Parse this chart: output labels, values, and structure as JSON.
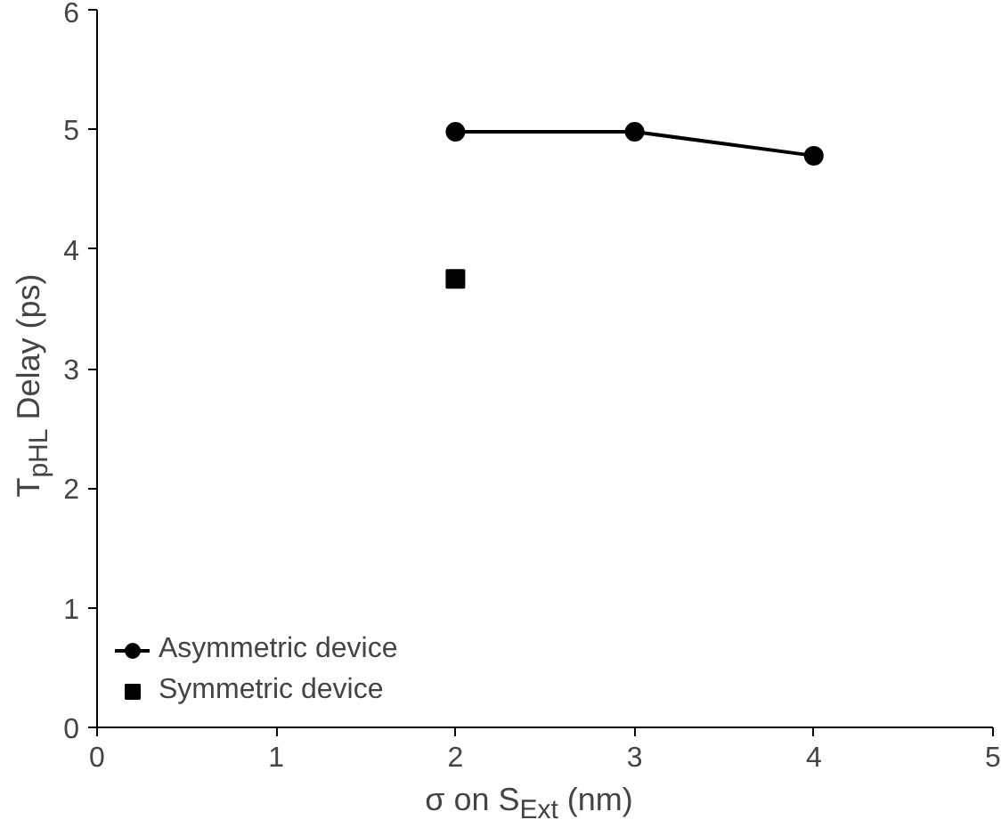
{
  "chart_data": {
    "type": "line",
    "xlabel": "σ on S$_{Ext}$ (nm)",
    "ylabel": "T$_{pHL}$ Delay (ps)",
    "xlim": [
      0,
      5
    ],
    "xticks": [
      0,
      1,
      2,
      3,
      4,
      5
    ],
    "ylim": [
      0,
      6
    ],
    "yticks": [
      0,
      1,
      2,
      3,
      4,
      5,
      6
    ],
    "grid": false,
    "legend": "bottom left",
    "series": [
      {
        "name": "Asymmetric device",
        "color": "#000000",
        "x": [
          2,
          3,
          4
        ],
        "values": [
          4.98,
          4.98,
          4.78
        ],
        "marker": "circle"
      },
      {
        "name": "Symmetric device",
        "color": "#000000",
        "type": "scatter",
        "x": [
          2
        ],
        "values": [
          3.75
        ],
        "marker": "square"
      }
    ]
  }
}
